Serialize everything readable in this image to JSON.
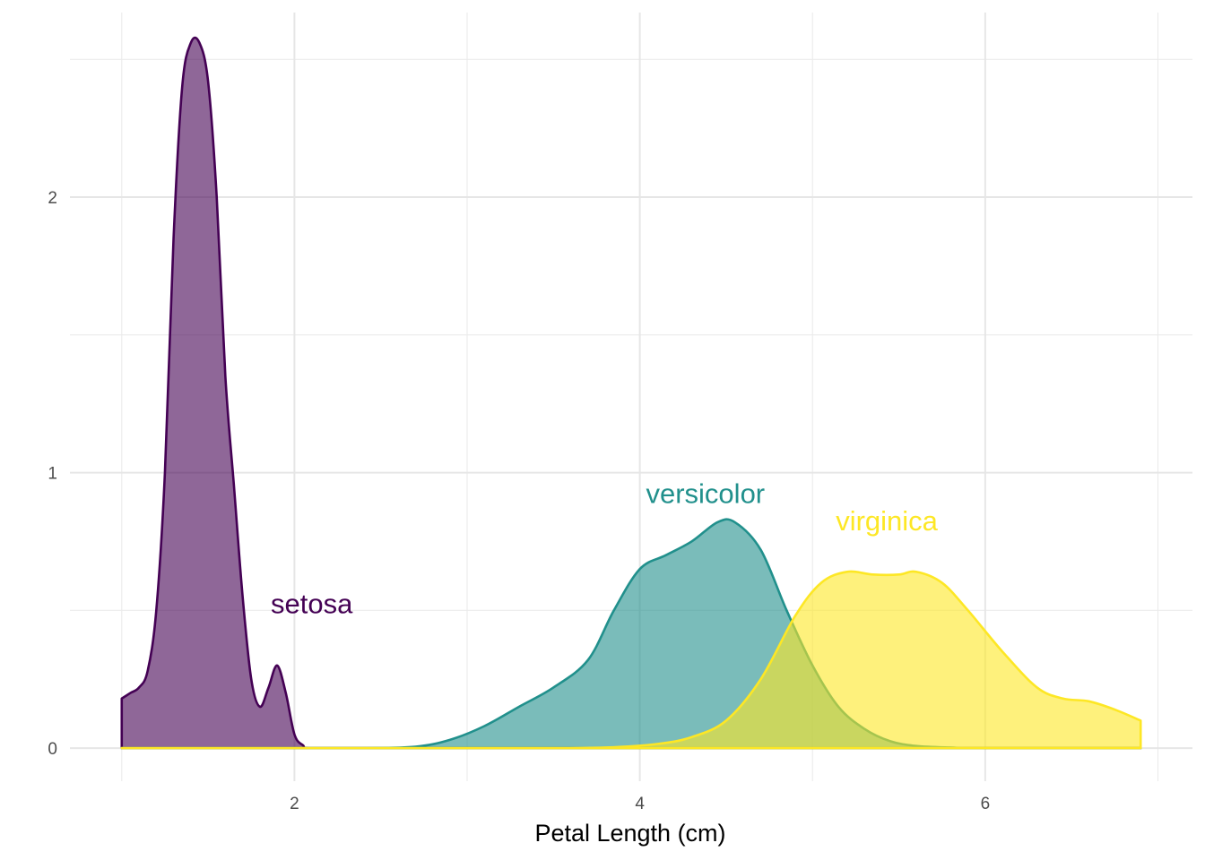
{
  "chart_data": {
    "type": "area",
    "title": "",
    "xlabel": "Petal Length (cm)",
    "ylabel": "",
    "xlim": [
      0.7,
      7.2
    ],
    "ylim": [
      -0.12,
      2.67
    ],
    "x_ticks": [
      2,
      4,
      6
    ],
    "x_tick_labels": [
      "2",
      "4",
      "6"
    ],
    "y_ticks": [
      0,
      1,
      2
    ],
    "y_tick_labels": [
      "0",
      "1",
      "2"
    ],
    "grid": true,
    "legend": "none",
    "series": [
      {
        "name": "setosa",
        "color": "#440154",
        "label_at": [
          2.1,
          0.49
        ],
        "points": [
          [
            1.0,
            0.18
          ],
          [
            1.05,
            0.2
          ],
          [
            1.1,
            0.22
          ],
          [
            1.15,
            0.28
          ],
          [
            1.2,
            0.5
          ],
          [
            1.25,
            1.0
          ],
          [
            1.3,
            1.85
          ],
          [
            1.35,
            2.4
          ],
          [
            1.4,
            2.56
          ],
          [
            1.45,
            2.56
          ],
          [
            1.5,
            2.42
          ],
          [
            1.55,
            2.0
          ],
          [
            1.6,
            1.35
          ],
          [
            1.65,
            0.95
          ],
          [
            1.7,
            0.55
          ],
          [
            1.75,
            0.25
          ],
          [
            1.8,
            0.15
          ],
          [
            1.85,
            0.22
          ],
          [
            1.9,
            0.3
          ],
          [
            1.95,
            0.2
          ],
          [
            2.0,
            0.05
          ],
          [
            2.05,
            0.01
          ],
          [
            2.1,
            0.0
          ],
          [
            2.5,
            0.0
          ],
          [
            3.0,
            0.0
          ],
          [
            4.0,
            0.0
          ],
          [
            5.0,
            0.0
          ],
          [
            6.0,
            0.0
          ],
          [
            6.9,
            0.0
          ]
        ]
      },
      {
        "name": "versicolor",
        "color": "#21908C",
        "label_at": [
          4.38,
          0.89
        ],
        "points": [
          [
            1.0,
            0.0
          ],
          [
            2.0,
            0.0
          ],
          [
            2.4,
            0.0
          ],
          [
            2.7,
            0.005
          ],
          [
            2.9,
            0.03
          ],
          [
            3.1,
            0.08
          ],
          [
            3.3,
            0.15
          ],
          [
            3.5,
            0.22
          ],
          [
            3.7,
            0.32
          ],
          [
            3.85,
            0.5
          ],
          [
            4.0,
            0.65
          ],
          [
            4.15,
            0.7
          ],
          [
            4.3,
            0.75
          ],
          [
            4.45,
            0.82
          ],
          [
            4.55,
            0.82
          ],
          [
            4.7,
            0.72
          ],
          [
            4.85,
            0.5
          ],
          [
            5.0,
            0.3
          ],
          [
            5.15,
            0.15
          ],
          [
            5.3,
            0.07
          ],
          [
            5.45,
            0.025
          ],
          [
            5.6,
            0.008
          ],
          [
            5.8,
            0.002
          ],
          [
            6.0,
            0.0
          ],
          [
            6.9,
            0.0
          ]
        ]
      },
      {
        "name": "virginica",
        "color": "#FDE725",
        "label_at": [
          5.43,
          0.79
        ],
        "points": [
          [
            1.0,
            0.0
          ],
          [
            3.0,
            0.0
          ],
          [
            3.5,
            0.0
          ],
          [
            3.8,
            0.002
          ],
          [
            4.1,
            0.015
          ],
          [
            4.3,
            0.04
          ],
          [
            4.5,
            0.1
          ],
          [
            4.7,
            0.25
          ],
          [
            4.9,
            0.48
          ],
          [
            5.05,
            0.6
          ],
          [
            5.2,
            0.64
          ],
          [
            5.35,
            0.63
          ],
          [
            5.5,
            0.63
          ],
          [
            5.6,
            0.64
          ],
          [
            5.75,
            0.6
          ],
          [
            5.9,
            0.5
          ],
          [
            6.1,
            0.35
          ],
          [
            6.3,
            0.22
          ],
          [
            6.45,
            0.18
          ],
          [
            6.6,
            0.17
          ],
          [
            6.75,
            0.14
          ],
          [
            6.9,
            0.1
          ]
        ]
      }
    ]
  }
}
